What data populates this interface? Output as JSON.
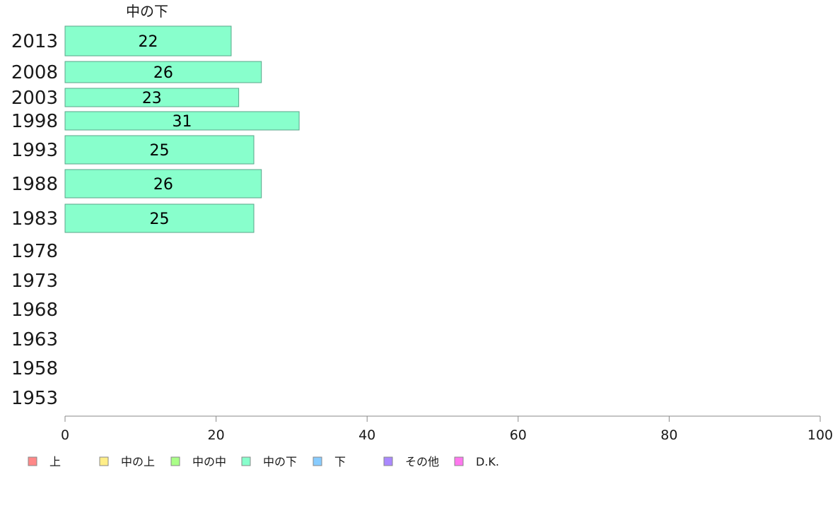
{
  "chart_data": {
    "type": "bar",
    "orientation": "horizontal",
    "title": "中の下",
    "categories": [
      "2013",
      "2008",
      "2003",
      "1998",
      "1993",
      "1988",
      "1983",
      "1978",
      "1973",
      "1968",
      "1963",
      "1958",
      "1953"
    ],
    "series": [
      {
        "name": "中の下",
        "color": "#88ffcc",
        "values": [
          22,
          26,
          23,
          31,
          25,
          26,
          25,
          null,
          null,
          null,
          null,
          null,
          null
        ]
      }
    ],
    "xlim": [
      0,
      100
    ],
    "xticks": [
      0,
      20,
      40,
      60,
      80,
      100
    ],
    "grid": false,
    "legend_position": "bottom",
    "legend": [
      {
        "label": "上",
        "color": "#ff8888"
      },
      {
        "label": "中の上",
        "color": "#ffee88"
      },
      {
        "label": "中の中",
        "color": "#aaff88"
      },
      {
        "label": "中の下",
        "color": "#88ffcc"
      },
      {
        "label": "下",
        "color": "#88ccff"
      },
      {
        "label": "その他",
        "color": "#aa88ff"
      },
      {
        "label": "D.K.",
        "color": "#ff77ee"
      }
    ]
  }
}
